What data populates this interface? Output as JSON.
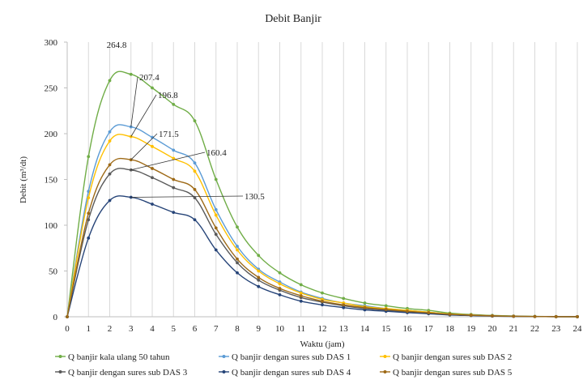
{
  "chart_data": {
    "type": "line",
    "title": "Debit Banjir",
    "xlabel": "Waktu (jam)",
    "ylabel": "Debit (m³/dt)",
    "x": [
      0,
      1,
      2,
      3,
      4,
      5,
      6,
      7,
      8,
      9,
      10,
      11,
      12,
      13,
      14,
      15,
      16,
      17,
      18,
      19,
      20,
      21,
      22,
      23,
      24
    ],
    "xlim": [
      0,
      24
    ],
    "ylim": [
      0,
      300
    ],
    "yticks": [
      0,
      50,
      100,
      150,
      200,
      250,
      300
    ],
    "grid": "vertical",
    "legend_position": "bottom",
    "series": [
      {
        "name": "Q banjir kala ulang 50 tahun",
        "color": "#70ad47",
        "values": [
          0,
          175,
          258,
          264.8,
          250,
          232,
          214,
          150,
          98,
          67,
          48,
          35,
          26,
          20,
          15,
          12,
          9,
          7,
          4,
          2.5,
          1.5,
          0.8,
          0.4,
          0.2,
          0.1
        ]
      },
      {
        "name": "Q banjir dengan sures sub DAS 1",
        "color": "#5b9bd5",
        "values": [
          0,
          137,
          202,
          207.4,
          196,
          182,
          168,
          117,
          77,
          52,
          38,
          27,
          20,
          15,
          12,
          9,
          7,
          5,
          3,
          2,
          1.2,
          0.6,
          0.3,
          0.15,
          0.05
        ]
      },
      {
        "name": "Q banjir dengan sures sub DAS 2",
        "color": "#ffc000",
        "values": [
          0,
          130,
          192,
          196.8,
          186,
          173,
          159,
          111,
          73,
          50,
          36,
          26,
          19,
          15,
          11,
          9,
          7,
          5,
          3,
          2,
          1.1,
          0.6,
          0.3,
          0.15,
          0.05
        ]
      },
      {
        "name": "Q banjir dengan sures sub DAS 3",
        "color": "#595959",
        "values": [
          0,
          106,
          156,
          160.4,
          152,
          141,
          130,
          90,
          59,
          40,
          29,
          21,
          16,
          12,
          9,
          7,
          5.5,
          4,
          2.5,
          1.6,
          0.9,
          0.5,
          0.25,
          0.1,
          0.05
        ]
      },
      {
        "name": "Q banjir dengan sures sub DAS 4",
        "color": "#264478",
        "values": [
          0,
          86,
          127,
          130.5,
          123,
          114,
          106,
          73,
          48,
          33,
          24,
          17,
          13,
          10,
          7.5,
          6,
          4.5,
          3.3,
          2,
          1.3,
          0.7,
          0.4,
          0.2,
          0.1,
          0.05
        ]
      },
      {
        "name": "Q banjir dengan sures sub DAS 5",
        "color": "#9e6a17",
        "values": [
          0,
          113,
          166,
          171.5,
          162,
          150,
          139,
          97,
          63,
          43,
          31,
          23,
          17,
          13,
          10,
          8,
          6,
          4.4,
          2.7,
          1.7,
          1,
          0.5,
          0.25,
          0.1,
          0.05
        ]
      }
    ],
    "annotations": [
      {
        "text": "264.8",
        "x": 3,
        "y": 264.8
      },
      {
        "text": "207.4",
        "x": 3,
        "y": 207.4
      },
      {
        "text": "196.8",
        "x": 3,
        "y": 196.8
      },
      {
        "text": "171.5",
        "x": 3,
        "y": 171.5
      },
      {
        "text": "160.4",
        "x": 3,
        "y": 160.4
      },
      {
        "text": "130.5",
        "x": 3,
        "y": 130.5
      }
    ]
  }
}
